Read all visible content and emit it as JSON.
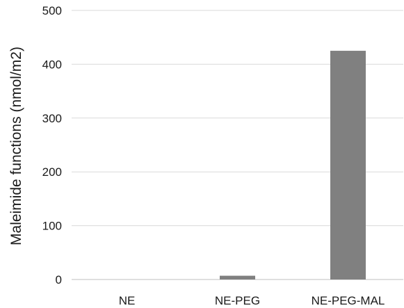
{
  "chart_data": {
    "type": "bar",
    "title": "",
    "xlabel": "",
    "ylabel": "Maleimide functions  (nmol/m2)",
    "categories": [
      "NE",
      "NE-PEG",
      "NE-PEG-MAL"
    ],
    "values": [
      0,
      7,
      425
    ],
    "ylim": [
      0,
      500
    ],
    "yticks": [
      0,
      100,
      200,
      300,
      400,
      500
    ],
    "grid": true,
    "legend": "none",
    "bar_color": "#808080"
  }
}
